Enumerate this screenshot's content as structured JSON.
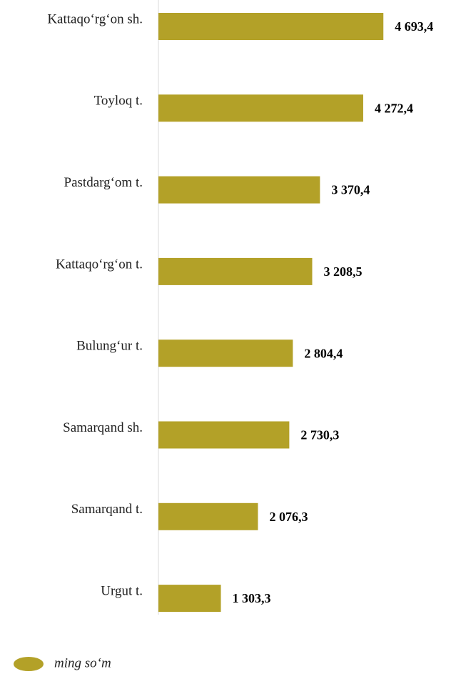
{
  "chart_data": {
    "type": "barh",
    "categories": [
      "Kattaqo‘rg‘on sh.",
      "Toyloq t.",
      "Pastdarg‘om t.",
      "Kattaqo‘rg‘on t.",
      "Bulung‘ur t.",
      "Samarqand sh.",
      "Samarqand t.",
      "Urgut t."
    ],
    "series": [
      {
        "name": "ming so‘m",
        "color": "#b3a128",
        "values": [
          4693.4,
          4272.4,
          3370.4,
          3208.5,
          2804.4,
          2730.3,
          2076.3,
          1303.3
        ],
        "value_labels": [
          "4 693,4",
          "4 272,4",
          "3 370,4",
          "3 208,5",
          "2 804,4",
          "2 730,3",
          "2 076,3",
          "1 303,3"
        ]
      }
    ],
    "xlim": [
      0,
      6000
    ],
    "legend": "bottom-left"
  }
}
